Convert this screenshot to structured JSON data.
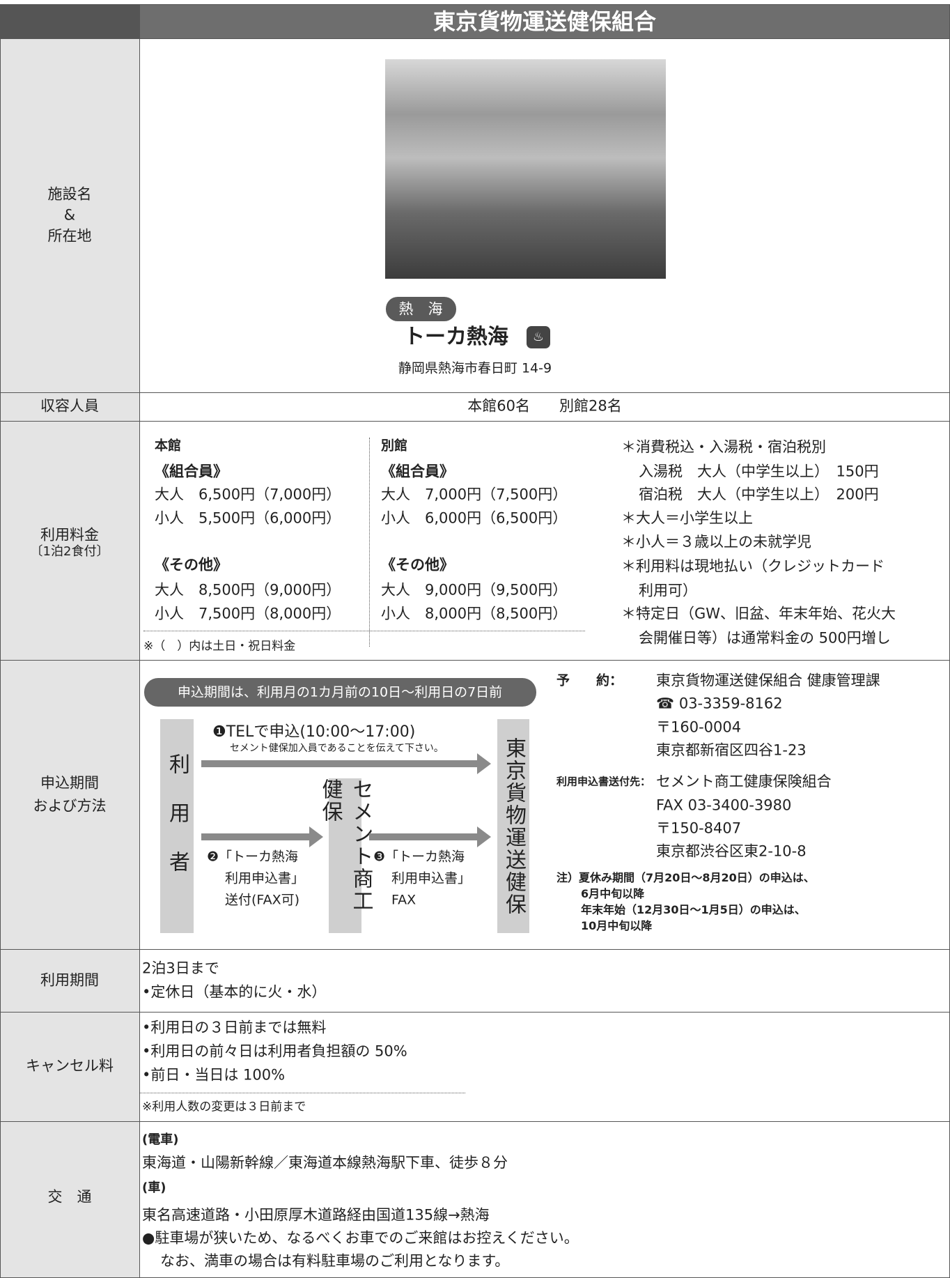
{
  "header": {
    "title": "東京貨物運送健保組合"
  },
  "facility": {
    "label": [
      "施設名",
      "&",
      "所在地"
    ],
    "area": "熱　海",
    "name": "トーカ熱海",
    "address": "静岡県熱海市春日町 14-9"
  },
  "capacity": {
    "label": "収容人員",
    "text": "本館60名　　別館28名"
  },
  "fees": {
    "label": "利用料金",
    "sublabel": "〔1泊2食付〕",
    "main": {
      "title": "本館",
      "member_heading": "《組合員》",
      "member": [
        "大人　6,500円（7,000円）",
        "小人　5,500円（6,000円）"
      ],
      "other_heading": "《その他》",
      "other": [
        "大人　8,500円（9,000円）",
        "小人　7,500円（8,000円）"
      ]
    },
    "annex": {
      "title": "別館",
      "member_heading": "《組合員》",
      "member": [
        "大人　7,000円（7,500円）",
        "小人　6,000円（6,500円）"
      ],
      "other_heading": "《その他》",
      "other": [
        "大人　9,000円（9,500円）",
        "小人　8,000円（8,500円）"
      ]
    },
    "note": "※（　）内は土日・祝日料金",
    "remarks": [
      "＊消費税込・入湯税・宿泊税別",
      "入湯税　大人（中学生以上）　150円",
      "宿泊税　大人（中学生以上）　200円",
      "＊大人＝小学生以上",
      "＊小人＝３歳以上の未就学児",
      "＊利用料は現地払い（クレジットカード",
      "利用可）",
      "＊特定日（GW、旧盆、年末年始、花火大",
      "会開催日等）は通常料金の 500円増し"
    ]
  },
  "application": {
    "label": [
      "申込期間",
      "および方法"
    ],
    "period": "申込期間は、利用月の1カ月前の10日〜利用日の7日前",
    "flow": {
      "user": "利用者",
      "cement": "セメント商工健保",
      "tokyo": "東京貨物運送健保",
      "step1": "❶TELで申込(10:00〜17:00)",
      "step1_note": "セメント健保加入員であることを伝えて下さい。",
      "step2": [
        "❷「トーカ熱海",
        "利用申込書」",
        "送付(FAX可)"
      ],
      "step3": [
        "❸「トーカ熱海",
        "利用申込書」",
        "FAX"
      ]
    },
    "reservation": {
      "label": "予　　約：",
      "lines": [
        "東京貨物運送健保組合 健康管理課",
        "☎ 03-3359-8162",
        "〒160-0004",
        "東京都新宿区四谷1-23"
      ]
    },
    "send_to": {
      "label": "利用申込書送付先：",
      "lines": [
        "セメント商工健康保険組合",
        "FAX 03-3400-3980",
        "〒150-8407",
        "東京都渋谷区東2-10-8"
      ]
    },
    "notes": [
      "注）夏休み期間（7月20日〜8月20日）の申込は、",
      "6月中旬以降",
      "年末年始（12月30日〜1月5日）の申込は、",
      "10月中旬以降"
    ]
  },
  "period": {
    "label": "利用期間",
    "lines": [
      "2泊3日まで",
      "•定休日（基本的に火・水）"
    ]
  },
  "cancel": {
    "label": "キャンセル料",
    "lines": [
      "•利用日の３日前までは無料",
      "•利用日の前々日は利用者負担額の 50%",
      "•前日・当日は 100%"
    ],
    "note": "※利用人数の変更は３日前まで"
  },
  "transport": {
    "label": "交　通",
    "train_heading": "(電車)",
    "train": "東海道・山陽新幹線／東海道本線熱海駅下車、徒歩８分",
    "car_heading": "(車)",
    "car": "東名高速道路・小田原厚木道路経由国道135線→熱海",
    "parking": [
      "●駐車場が狭いため、なるべくお車でのご来館はお控えください。",
      "なお、満車の場合は有料駐車場のご利用となります。"
    ]
  }
}
